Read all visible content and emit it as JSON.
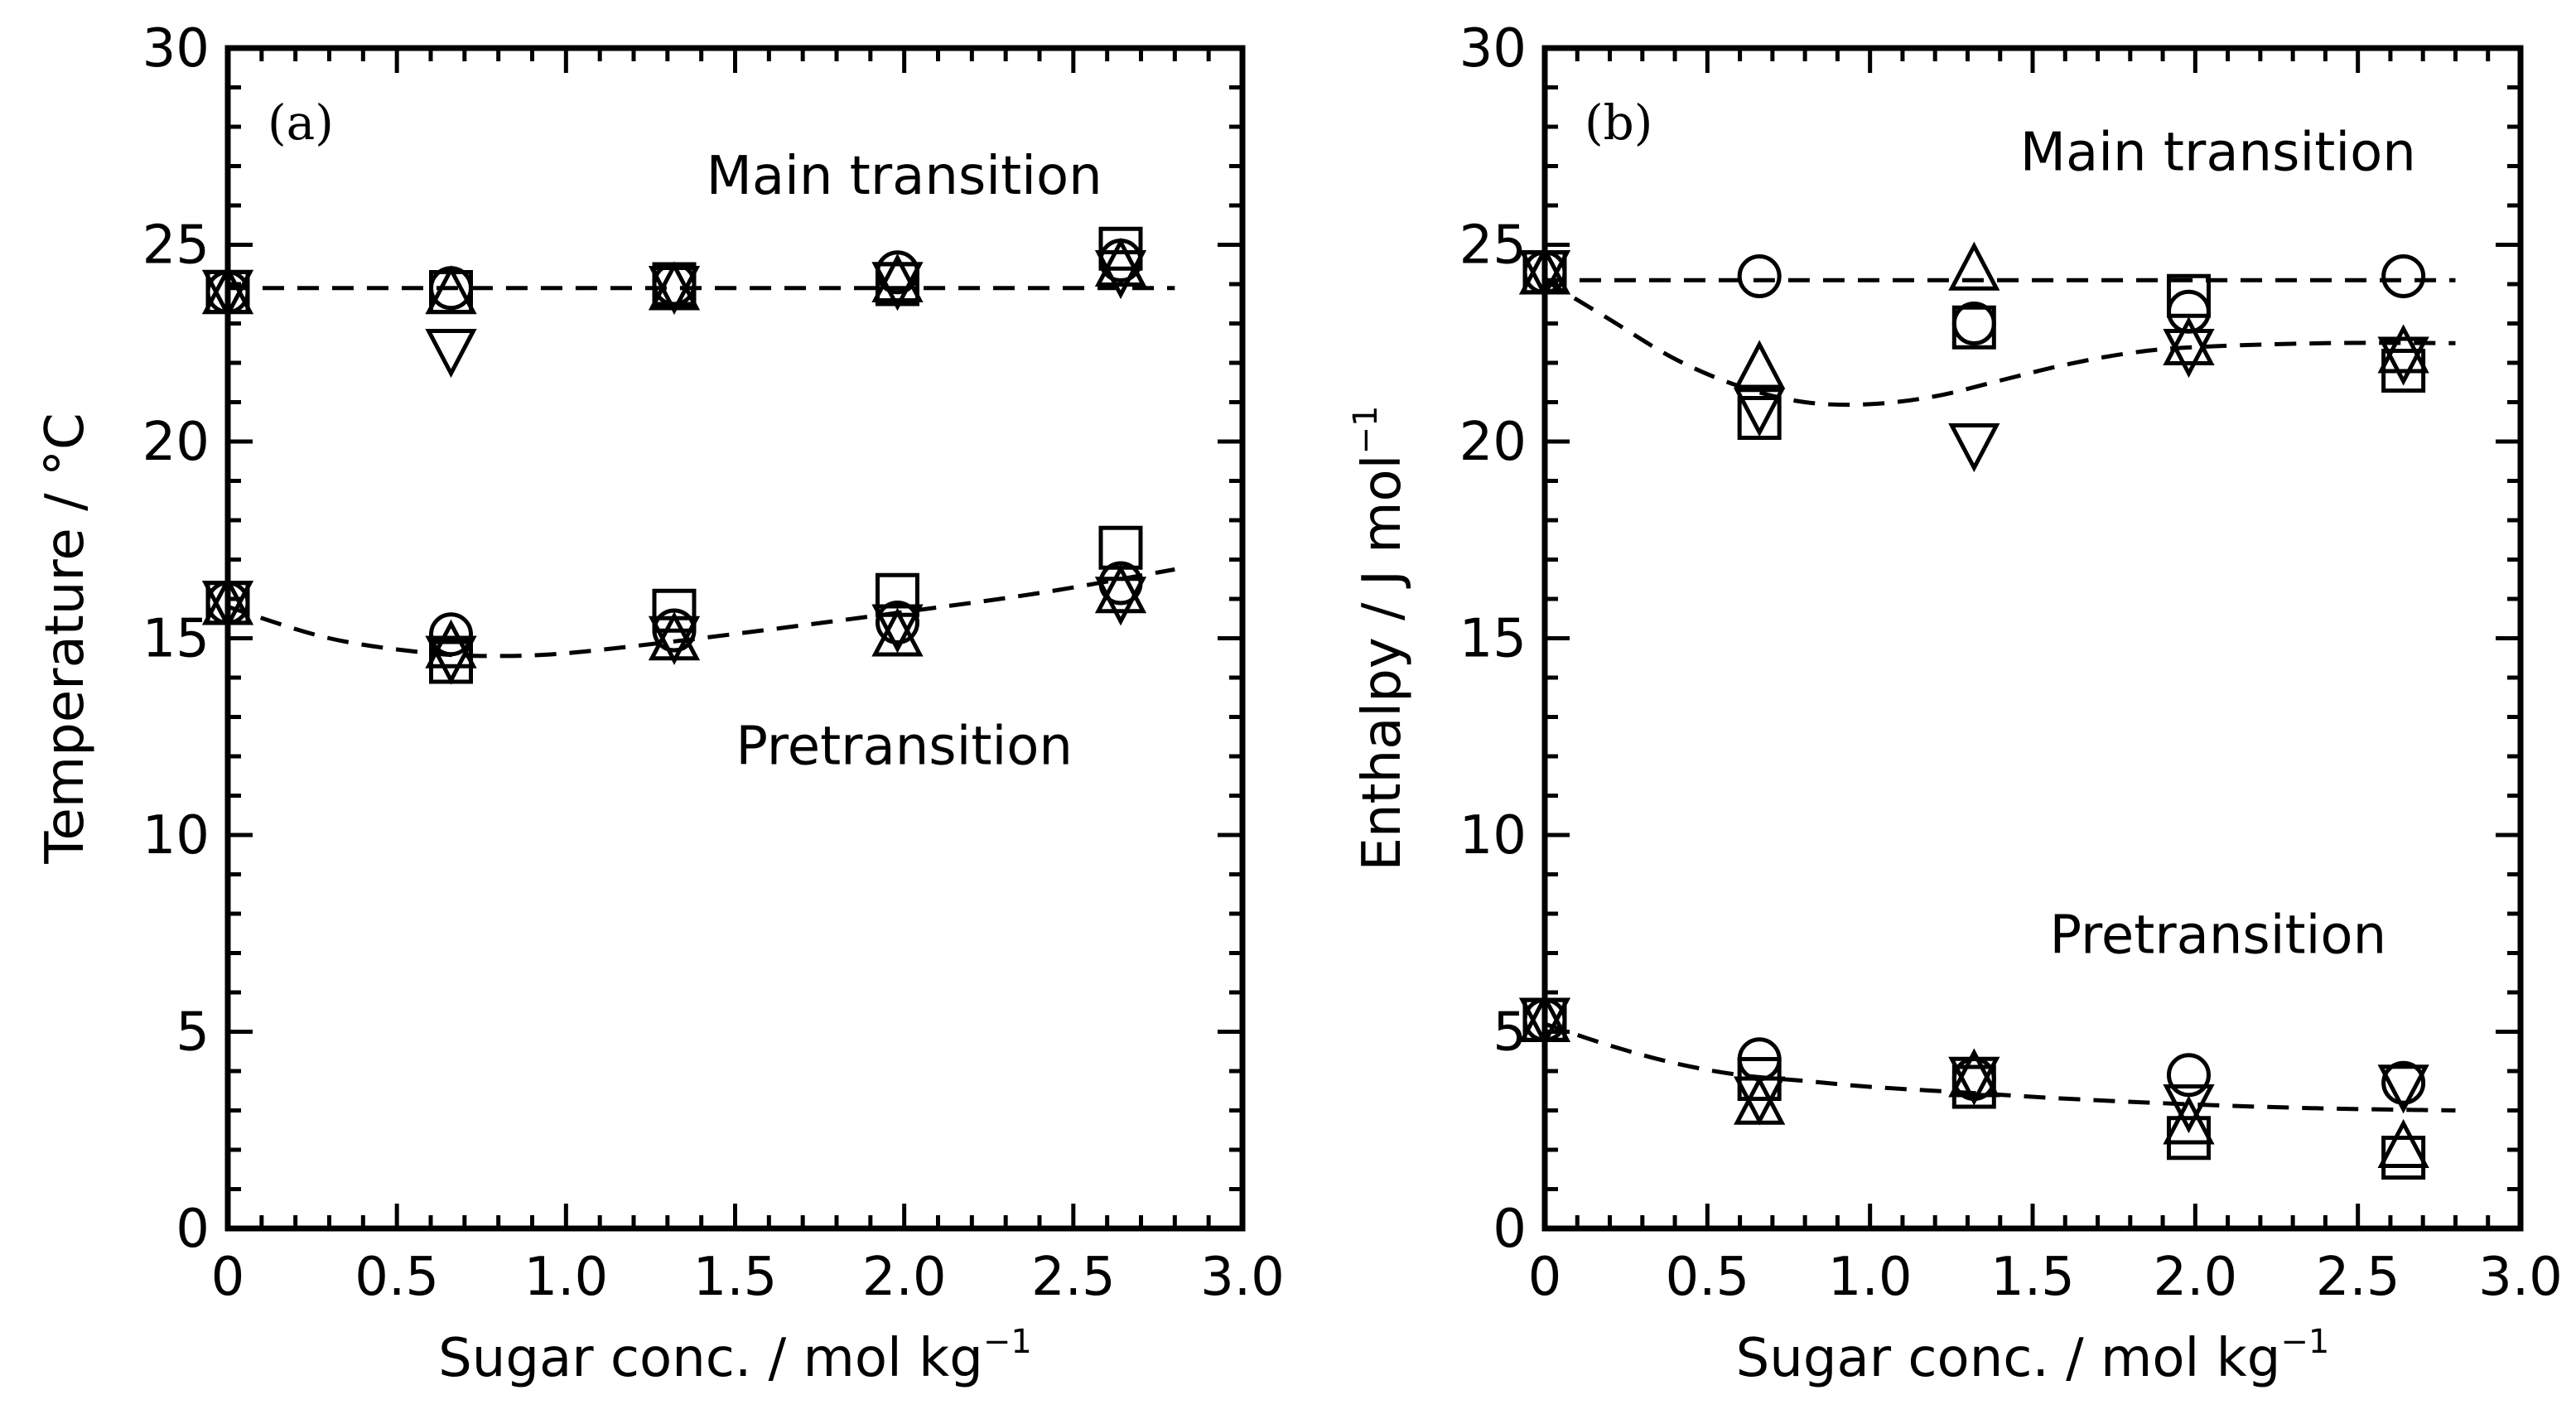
{
  "chart_data": [
    {
      "type": "scatter",
      "panel_label": "(a)",
      "xlabel": "Sugar conc. / mol kg",
      "xlabel_sup": "−1",
      "ylabel": "Temperature / °C",
      "xlim": [
        0,
        3.0
      ],
      "ylim": [
        0,
        30
      ],
      "xticks": [
        "0",
        "0.5",
        "1.0",
        "1.5",
        "2.0",
        "2.5",
        "3.0"
      ],
      "xtick_values": [
        0,
        0.5,
        1.0,
        1.5,
        2.0,
        2.5,
        3.0
      ],
      "yticks": [
        "0",
        "5",
        "10",
        "15",
        "20",
        "25",
        "30"
      ],
      "ytick_values": [
        0,
        5,
        10,
        15,
        20,
        25,
        30
      ],
      "annotations": [
        {
          "text": "Main transition",
          "x": 2.0,
          "y": 26.3
        },
        {
          "text": "Pretransition",
          "x": 2.0,
          "y": 11.8
        }
      ],
      "x": [
        0,
        0.66,
        1.32,
        1.98,
        2.64
      ],
      "series": [
        {
          "name": "Main transition – circle",
          "marker": "circle",
          "values": [
            23.8,
            23.9,
            24.0,
            24.3,
            24.6
          ]
        },
        {
          "name": "Main transition – triangle up",
          "marker": "triangle-up",
          "values": [
            23.8,
            23.8,
            23.9,
            24.1,
            24.5
          ]
        },
        {
          "name": "Main transition – triangle down",
          "marker": "triangle-down",
          "values": [
            23.8,
            22.3,
            23.9,
            24.0,
            24.3
          ]
        },
        {
          "name": "Main transition – square",
          "marker": "square",
          "values": [
            23.8,
            23.8,
            24.0,
            24.0,
            24.9
          ]
        },
        {
          "name": "Pretransition – circle",
          "marker": "circle",
          "values": [
            15.9,
            15.1,
            15.2,
            15.4,
            16.4
          ]
        },
        {
          "name": "Pretransition – triangle up",
          "marker": "triangle-up",
          "values": [
            15.9,
            14.8,
            15.0,
            15.1,
            16.2
          ]
        },
        {
          "name": "Pretransition – triangle down",
          "marker": "triangle-down",
          "values": [
            15.9,
            14.5,
            15.0,
            15.3,
            16.0
          ]
        },
        {
          "name": "Pretransition – square",
          "marker": "square",
          "values": [
            15.9,
            14.4,
            15.7,
            16.1,
            17.3
          ]
        }
      ],
      "fit_lines": [
        {
          "name": "Main transition fit",
          "x": [
            0,
            2.8
          ],
          "y": [
            23.9,
            23.9
          ]
        },
        {
          "name": "Pretransition fit",
          "x": [
            0,
            0.3,
            0.6,
            0.8,
            1.0,
            1.3,
            1.6,
            2.0,
            2.4,
            2.8
          ],
          "y": [
            15.8,
            15.0,
            14.62,
            14.55,
            14.62,
            14.9,
            15.22,
            15.67,
            16.15,
            16.75
          ]
        }
      ]
    },
    {
      "type": "scatter",
      "panel_label": "(b)",
      "xlabel": "Sugar conc. / mol kg",
      "xlabel_sup": "−1",
      "ylabel": "Enthalpy / J mol",
      "ylabel_sup": "−1",
      "xlim": [
        0,
        3.0
      ],
      "ylim": [
        0,
        30
      ],
      "xticks": [
        "0",
        "0.5",
        "1.0",
        "1.5",
        "2.0",
        "2.5",
        "3.0"
      ],
      "xtick_values": [
        0,
        0.5,
        1.0,
        1.5,
        2.0,
        2.5,
        3.0
      ],
      "yticks": [
        "0",
        "5",
        "10",
        "15",
        "20",
        "25",
        "30"
      ],
      "ytick_values": [
        0,
        5,
        10,
        15,
        20,
        25,
        30
      ],
      "annotations": [
        {
          "text": "Main transition",
          "x": 2.07,
          "y": 26.9
        },
        {
          "text": "Pretransition",
          "x": 2.07,
          "y": 7.0
        }
      ],
      "x": [
        0,
        0.66,
        1.32,
        1.98,
        2.64
      ],
      "series": [
        {
          "name": "Main transition – circle",
          "marker": "circle",
          "values": [
            24.3,
            24.2,
            23.0,
            23.3,
            24.2
          ]
        },
        {
          "name": "Main transition – triangle up",
          "marker": "triangle-up",
          "values": [
            24.3,
            21.9,
            24.4,
            22.5,
            22.3
          ]
        },
        {
          "name": "Main transition – triangle down",
          "marker": "triangle-down",
          "values": [
            24.3,
            20.8,
            19.9,
            22.3,
            22.1
          ]
        },
        {
          "name": "Main transition – square",
          "marker": "square",
          "values": [
            24.3,
            20.6,
            22.9,
            23.7,
            21.8
          ]
        },
        {
          "name": "Pretransition – circle",
          "marker": "circle",
          "values": [
            5.3,
            4.3,
            3.8,
            3.9,
            3.7
          ]
        },
        {
          "name": "Pretransition – triangle up",
          "marker": "triangle-up",
          "values": [
            5.3,
            3.2,
            3.9,
            2.7,
            2.1
          ]
        },
        {
          "name": "Pretransition – triangle down",
          "marker": "triangle-down",
          "values": [
            5.3,
            3.3,
            3.8,
            3.1,
            3.6
          ]
        },
        {
          "name": "Pretransition – square",
          "marker": "square",
          "values": [
            5.3,
            3.8,
            3.6,
            2.3,
            1.8
          ]
        }
      ],
      "fit_lines": [
        {
          "name": "Main transition fit",
          "x": [
            0,
            2.8
          ],
          "y": [
            24.1,
            24.1
          ]
        },
        {
          "name": "Main transition fit (curved)",
          "x": [
            0,
            0.2,
            0.4,
            0.6,
            0.8,
            1.0,
            1.2,
            1.4,
            1.6,
            1.8,
            2.0,
            2.4,
            2.8
          ],
          "y": [
            24.1,
            23.1,
            22.1,
            21.4,
            21.0,
            20.95,
            21.15,
            21.55,
            21.95,
            22.25,
            22.4,
            22.5,
            22.5
          ]
        },
        {
          "name": "Pretransition fit",
          "x": [
            0,
            0.2,
            0.4,
            0.6,
            0.8,
            1.0,
            1.3,
            1.6,
            2.0,
            2.4,
            2.8
          ],
          "y": [
            5.2,
            4.65,
            4.2,
            3.9,
            3.75,
            3.6,
            3.45,
            3.3,
            3.15,
            3.05,
            3.0
          ]
        }
      ]
    }
  ]
}
